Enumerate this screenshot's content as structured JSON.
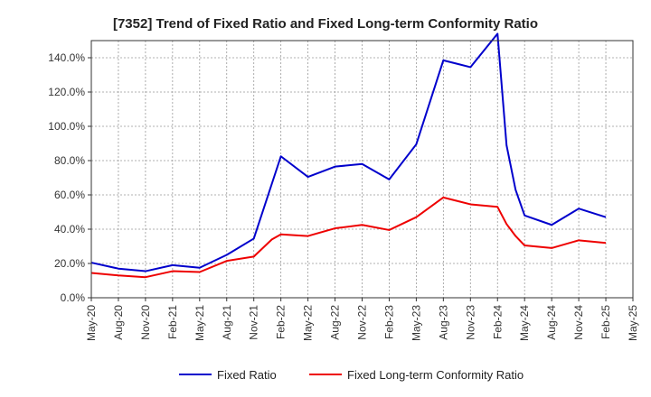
{
  "chart_data": {
    "type": "line",
    "title": "[7352]  Trend of Fixed Ratio and Fixed Long-term Conformity Ratio",
    "xlabel": "",
    "ylabel": "",
    "ylim": [
      0,
      150
    ],
    "yticks": [
      0,
      20,
      40,
      60,
      80,
      100,
      120,
      140
    ],
    "ytick_labels": [
      "0.0%",
      "20.0%",
      "40.0%",
      "60.0%",
      "80.0%",
      "100.0%",
      "120.0%",
      "140.0%"
    ],
    "xlim": [
      "2020-05",
      "2025-05"
    ],
    "xtick_labels": [
      "May-20",
      "Aug-20",
      "Nov-20",
      "Feb-21",
      "May-21",
      "Aug-21",
      "Nov-21",
      "Feb-22",
      "May-22",
      "Aug-22",
      "Nov-22",
      "Feb-23",
      "May-23",
      "Aug-23",
      "Nov-23",
      "Feb-24",
      "May-24",
      "Aug-24",
      "Nov-24",
      "Feb-25",
      "May-25"
    ],
    "grid": true,
    "legend_position": "bottom",
    "series": [
      {
        "name": "Fixed Ratio",
        "color": "#0000cc",
        "points": [
          [
            "2020-05",
            20.5
          ],
          [
            "2020-08",
            17.0
          ],
          [
            "2020-11",
            15.5
          ],
          [
            "2021-02",
            19.0
          ],
          [
            "2021-05",
            17.5
          ],
          [
            "2021-08",
            25.0
          ],
          [
            "2021-11",
            34.5
          ],
          [
            "2022-02",
            82.5
          ],
          [
            "2022-05",
            70.5
          ],
          [
            "2022-08",
            76.5
          ],
          [
            "2022-11",
            78.0
          ],
          [
            "2023-02",
            69.0
          ],
          [
            "2023-05",
            89.5
          ],
          [
            "2023-08",
            138.5
          ],
          [
            "2023-11",
            134.5
          ],
          [
            "2024-02",
            154.0
          ],
          [
            "2024-03",
            89.0
          ],
          [
            "2024-04",
            63.0
          ],
          [
            "2024-05",
            48.0
          ],
          [
            "2024-08",
            42.5
          ],
          [
            "2024-11",
            52.0
          ],
          [
            "2025-02",
            47.0
          ]
        ]
      },
      {
        "name": "Fixed Long-term Conformity Ratio",
        "color": "#ee0000",
        "points": [
          [
            "2020-05",
            14.5
          ],
          [
            "2020-08",
            13.0
          ],
          [
            "2020-11",
            12.0
          ],
          [
            "2021-02",
            15.5
          ],
          [
            "2021-05",
            15.0
          ],
          [
            "2021-08",
            21.5
          ],
          [
            "2021-11",
            24.0
          ],
          [
            "2021-12",
            29.0
          ],
          [
            "2022-01",
            34.0
          ],
          [
            "2022-02",
            37.0
          ],
          [
            "2022-05",
            36.0
          ],
          [
            "2022-08",
            40.5
          ],
          [
            "2022-11",
            42.5
          ],
          [
            "2023-02",
            39.5
          ],
          [
            "2023-05",
            47.0
          ],
          [
            "2023-08",
            58.5
          ],
          [
            "2023-11",
            54.5
          ],
          [
            "2024-02",
            53.0
          ],
          [
            "2024-03",
            43.0
          ],
          [
            "2024-04",
            36.0
          ],
          [
            "2024-05",
            30.5
          ],
          [
            "2024-08",
            29.0
          ],
          [
            "2024-11",
            33.5
          ],
          [
            "2025-02",
            32.0
          ]
        ]
      }
    ]
  }
}
